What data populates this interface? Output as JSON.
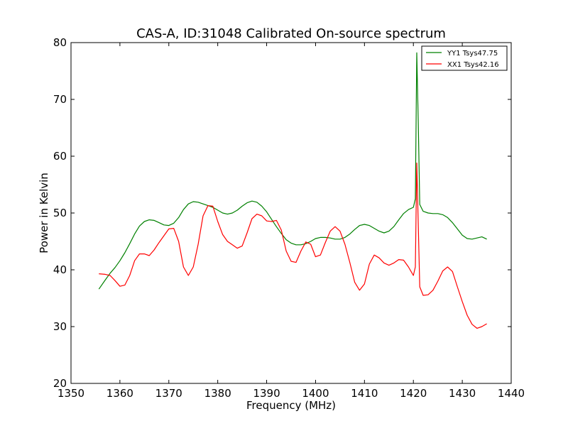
{
  "chart_data": {
    "type": "line",
    "title": "CAS-A, ID:31048 Calibrated On-source spectrum",
    "xlabel": "Frequency (MHz)",
    "ylabel": "Power in Kelvin",
    "xlim": [
      1350,
      1440
    ],
    "ylim": [
      20,
      80
    ],
    "xticks": [
      1350,
      1360,
      1370,
      1380,
      1390,
      1400,
      1410,
      1420,
      1430,
      1440
    ],
    "yticks": [
      20,
      30,
      40,
      50,
      60,
      70,
      80
    ],
    "grid": false,
    "legend_position": "top-right",
    "series": [
      {
        "name": "YY1 Tsys47.75",
        "color": "#008000",
        "points": [
          [
            1355.7,
            36.6
          ],
          [
            1357,
            38.2
          ],
          [
            1358,
            39.4
          ],
          [
            1359,
            40.4
          ],
          [
            1360,
            41.6
          ],
          [
            1361,
            43.0
          ],
          [
            1362,
            44.6
          ],
          [
            1363,
            46.3
          ],
          [
            1364,
            47.7
          ],
          [
            1365,
            48.5
          ],
          [
            1366,
            48.8
          ],
          [
            1367,
            48.7
          ],
          [
            1368,
            48.3
          ],
          [
            1369,
            47.9
          ],
          [
            1370,
            47.8
          ],
          [
            1371,
            48.2
          ],
          [
            1372,
            49.2
          ],
          [
            1373,
            50.6
          ],
          [
            1374,
            51.6
          ],
          [
            1375,
            52.0
          ],
          [
            1376,
            51.9
          ],
          [
            1377,
            51.6
          ],
          [
            1378,
            51.3
          ],
          [
            1379,
            51.0
          ],
          [
            1380,
            50.5
          ],
          [
            1381,
            50.0
          ],
          [
            1382,
            49.8
          ],
          [
            1383,
            50.0
          ],
          [
            1384,
            50.5
          ],
          [
            1385,
            51.2
          ],
          [
            1386,
            51.8
          ],
          [
            1387,
            52.1
          ],
          [
            1388,
            51.9
          ],
          [
            1389,
            51.2
          ],
          [
            1390,
            50.2
          ],
          [
            1391,
            48.9
          ],
          [
            1392,
            47.6
          ],
          [
            1393,
            46.4
          ],
          [
            1394,
            45.3
          ],
          [
            1395,
            44.7
          ],
          [
            1396,
            44.4
          ],
          [
            1397,
            44.4
          ],
          [
            1398,
            44.6
          ],
          [
            1399,
            45.0
          ],
          [
            1400,
            45.5
          ],
          [
            1401,
            45.7
          ],
          [
            1402,
            45.7
          ],
          [
            1403,
            45.6
          ],
          [
            1404,
            45.4
          ],
          [
            1405,
            45.4
          ],
          [
            1406,
            45.7
          ],
          [
            1407,
            46.3
          ],
          [
            1408,
            47.1
          ],
          [
            1409,
            47.8
          ],
          [
            1410,
            48.0
          ],
          [
            1411,
            47.8
          ],
          [
            1412,
            47.3
          ],
          [
            1413,
            46.8
          ],
          [
            1414,
            46.5
          ],
          [
            1415,
            46.8
          ],
          [
            1416,
            47.6
          ],
          [
            1417,
            48.8
          ],
          [
            1418,
            49.9
          ],
          [
            1419,
            50.6
          ],
          [
            1420,
            51.0
          ],
          [
            1420.4,
            52.5
          ],
          [
            1420.7,
            78.2
          ],
          [
            1421.0,
            66.0
          ],
          [
            1421.3,
            51.5
          ],
          [
            1422,
            50.3
          ],
          [
            1423,
            50.0
          ],
          [
            1424,
            49.9
          ],
          [
            1425,
            49.9
          ],
          [
            1426,
            49.7
          ],
          [
            1427,
            49.2
          ],
          [
            1428,
            48.3
          ],
          [
            1429,
            47.2
          ],
          [
            1430,
            46.1
          ],
          [
            1431,
            45.5
          ],
          [
            1432,
            45.4
          ],
          [
            1433,
            45.6
          ],
          [
            1434,
            45.8
          ],
          [
            1435,
            45.4
          ]
        ]
      },
      {
        "name": "XX1 Tsys42.16",
        "color": "#ff0000",
        "points": [
          [
            1355.7,
            39.3
          ],
          [
            1357,
            39.2
          ],
          [
            1358,
            39.0
          ],
          [
            1359,
            38.1
          ],
          [
            1360,
            37.1
          ],
          [
            1361,
            37.3
          ],
          [
            1362,
            39.0
          ],
          [
            1363,
            41.6
          ],
          [
            1364,
            42.8
          ],
          [
            1365,
            42.8
          ],
          [
            1366,
            42.5
          ],
          [
            1367,
            43.5
          ],
          [
            1368,
            44.8
          ],
          [
            1369,
            46.0
          ],
          [
            1370,
            47.2
          ],
          [
            1371,
            47.3
          ],
          [
            1372,
            45.0
          ],
          [
            1373,
            40.5
          ],
          [
            1374,
            39.0
          ],
          [
            1375,
            40.5
          ],
          [
            1376,
            44.5
          ],
          [
            1377,
            49.5
          ],
          [
            1378,
            51.3
          ],
          [
            1379,
            51.2
          ],
          [
            1380,
            48.5
          ],
          [
            1381,
            46.2
          ],
          [
            1382,
            45.0
          ],
          [
            1383,
            44.4
          ],
          [
            1384,
            43.8
          ],
          [
            1385,
            44.2
          ],
          [
            1386,
            46.5
          ],
          [
            1387,
            49.0
          ],
          [
            1388,
            49.8
          ],
          [
            1389,
            49.5
          ],
          [
            1390,
            48.6
          ],
          [
            1391,
            48.5
          ],
          [
            1392,
            48.7
          ],
          [
            1393,
            47.0
          ],
          [
            1394,
            43.3
          ],
          [
            1395,
            41.5
          ],
          [
            1396,
            41.3
          ],
          [
            1397,
            43.3
          ],
          [
            1398,
            44.9
          ],
          [
            1399,
            44.5
          ],
          [
            1400,
            42.3
          ],
          [
            1401,
            42.6
          ],
          [
            1402,
            44.8
          ],
          [
            1403,
            46.8
          ],
          [
            1404,
            47.6
          ],
          [
            1405,
            46.8
          ],
          [
            1406,
            44.5
          ],
          [
            1407,
            41.3
          ],
          [
            1408,
            37.8
          ],
          [
            1409,
            36.4
          ],
          [
            1410,
            37.5
          ],
          [
            1411,
            41.0
          ],
          [
            1412,
            42.6
          ],
          [
            1413,
            42.1
          ],
          [
            1414,
            41.2
          ],
          [
            1415,
            40.8
          ],
          [
            1416,
            41.2
          ],
          [
            1417,
            41.8
          ],
          [
            1418,
            41.7
          ],
          [
            1419,
            40.5
          ],
          [
            1420,
            39.0
          ],
          [
            1420.4,
            40.5
          ],
          [
            1420.7,
            58.8
          ],
          [
            1421.0,
            48.0
          ],
          [
            1421.3,
            37.0
          ],
          [
            1422,
            35.5
          ],
          [
            1423,
            35.6
          ],
          [
            1424,
            36.4
          ],
          [
            1425,
            38.0
          ],
          [
            1426,
            39.8
          ],
          [
            1427,
            40.5
          ],
          [
            1428,
            39.7
          ],
          [
            1429,
            37.0
          ],
          [
            1430,
            34.4
          ],
          [
            1431,
            32.0
          ],
          [
            1432,
            30.4
          ],
          [
            1433,
            29.7
          ],
          [
            1434,
            30.0
          ],
          [
            1435,
            30.5
          ]
        ]
      }
    ]
  }
}
